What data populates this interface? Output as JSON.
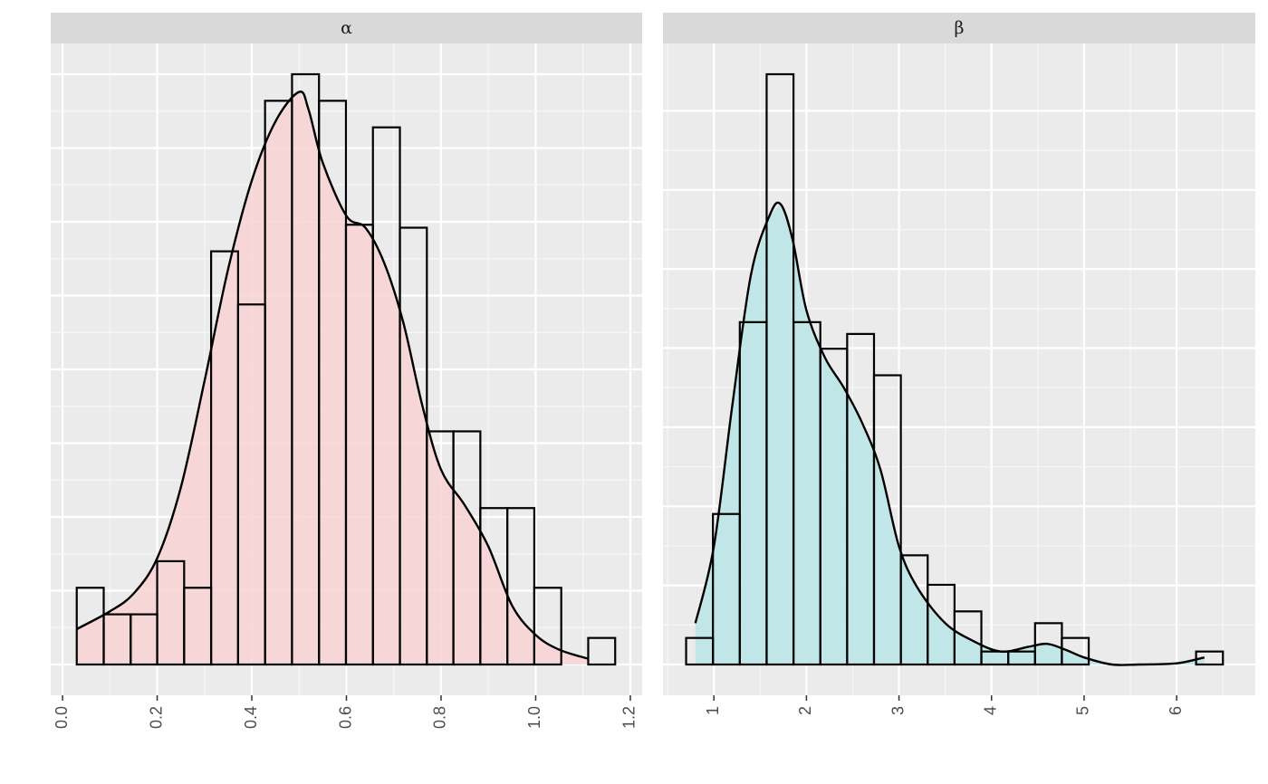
{
  "chart_data": [
    {
      "type": "bar",
      "panel_title": "α",
      "fill_color": "#f8d2d3",
      "fill_opacity": 0.85,
      "bar_edge_color": "#000000",
      "background_color": "#ebebeb",
      "grid": true,
      "xlim": [
        -0.025,
        1.225
      ],
      "ylim": [
        0,
        1
      ],
      "x_ticks": [
        0.0,
        0.2,
        0.4,
        0.6,
        0.8,
        1.0,
        1.2
      ],
      "x_tick_labels": [
        "0.0",
        "0.2",
        "0.4",
        "0.6",
        "0.8",
        "1.0",
        "1.2"
      ],
      "y_ticks_shown": false,
      "bin_edges": [
        0.03,
        0.087,
        0.144,
        0.2,
        0.257,
        0.314,
        0.371,
        0.428,
        0.485,
        0.542,
        0.599,
        0.656,
        0.713,
        0.77,
        0.826,
        0.883,
        0.94,
        0.997,
        1.054,
        1.111,
        1.168
      ],
      "heights": [
        0.13,
        0.085,
        0.085,
        0.175,
        0.13,
        0.7,
        0.61,
        0.955,
        1.0,
        0.955,
        0.745,
        0.91,
        0.74,
        0.395,
        0.395,
        0.265,
        0.265,
        0.13,
        0.0,
        0.045
      ],
      "density_x": [
        0.03,
        0.1,
        0.15,
        0.2,
        0.25,
        0.3,
        0.35,
        0.4,
        0.45,
        0.5,
        0.52,
        0.55,
        0.6,
        0.64,
        0.68,
        0.72,
        0.76,
        0.8,
        0.85,
        0.9,
        0.95,
        1.0,
        1.05,
        1.11
      ],
      "density_y": [
        0.06,
        0.09,
        0.12,
        0.18,
        0.3,
        0.48,
        0.67,
        0.82,
        0.92,
        0.97,
        0.94,
        0.85,
        0.76,
        0.74,
        0.68,
        0.58,
        0.44,
        0.33,
        0.27,
        0.2,
        0.1,
        0.05,
        0.025,
        0.01
      ]
    },
    {
      "type": "bar",
      "panel_title": "β",
      "fill_color": "#bfe6e7",
      "fill_opacity": 0.95,
      "bar_edge_color": "#000000",
      "background_color": "#ebebeb",
      "grid": true,
      "xlim": [
        0.45,
        6.85
      ],
      "ylim": [
        0,
        1
      ],
      "x_ticks": [
        1,
        2,
        3,
        4,
        5,
        6
      ],
      "x_tick_labels": [
        "1",
        "2",
        "3",
        "4",
        "5",
        "6"
      ],
      "y_ticks_shown": false,
      "bin_edges": [
        0.7,
        0.99,
        1.28,
        1.57,
        1.86,
        2.15,
        2.44,
        2.73,
        3.02,
        3.31,
        3.6,
        3.89,
        4.18,
        4.47,
        4.76,
        5.05,
        5.34,
        5.63,
        5.92,
        6.21,
        6.5
      ],
      "heights": [
        0.045,
        0.255,
        0.58,
        1.0,
        0.58,
        0.535,
        0.56,
        0.49,
        0.185,
        0.135,
        0.09,
        0.022,
        0.022,
        0.07,
        0.045,
        0.0,
        0.0,
        0.0,
        0.0,
        0.022
      ],
      "density_x": [
        0.8,
        1.0,
        1.2,
        1.4,
        1.6,
        1.72,
        1.85,
        2.0,
        2.2,
        2.4,
        2.6,
        2.8,
        3.0,
        3.2,
        3.5,
        3.8,
        4.1,
        4.4,
        4.6,
        4.8,
        5.0,
        5.3,
        5.6,
        6.0,
        6.3
      ],
      "density_y": [
        0.07,
        0.2,
        0.44,
        0.66,
        0.76,
        0.78,
        0.72,
        0.6,
        0.52,
        0.47,
        0.41,
        0.33,
        0.2,
        0.13,
        0.07,
        0.04,
        0.022,
        0.03,
        0.035,
        0.025,
        0.012,
        0.0,
        0.0,
        0.002,
        0.012
      ]
    }
  ]
}
